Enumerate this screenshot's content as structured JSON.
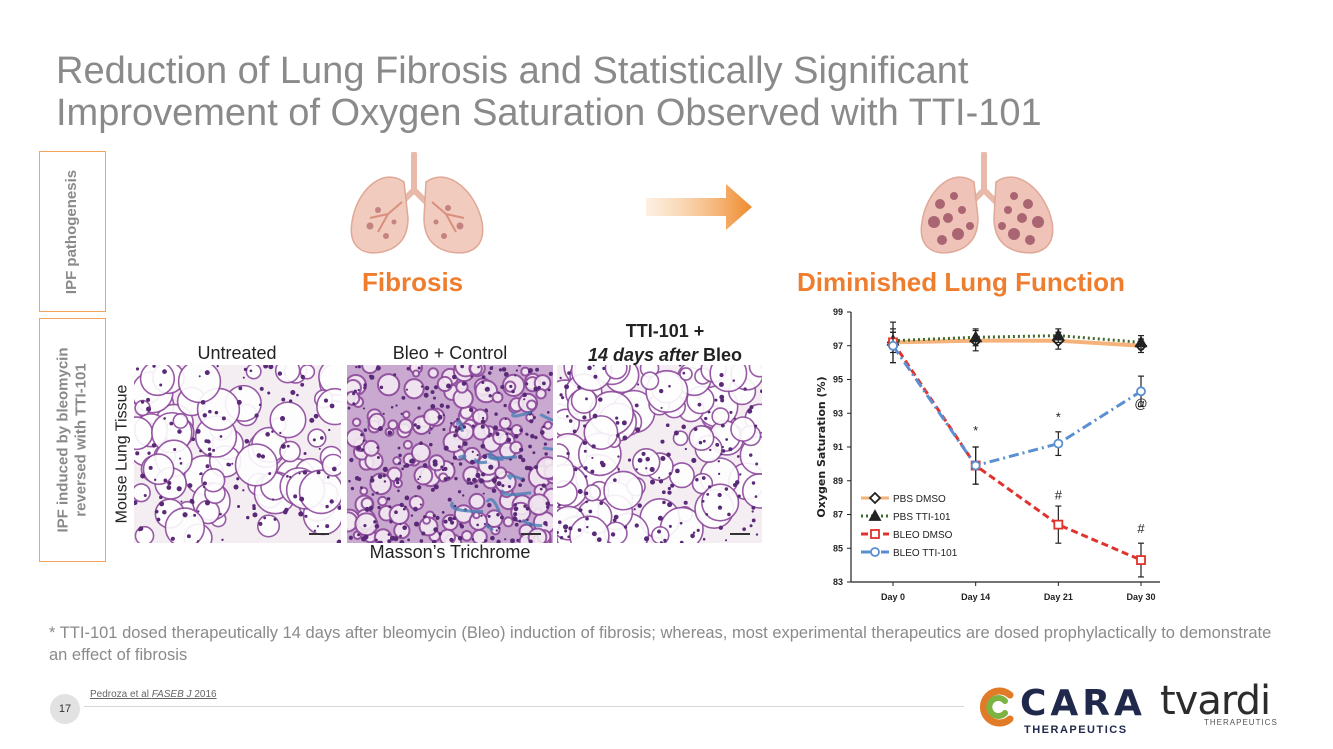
{
  "title": {
    "line1": "Reduction of Lung Fibrosis and Statistically Significant",
    "line2": "Improvement of Oxygen Saturation Observed with TTI-101"
  },
  "side_labels": {
    "top": "IPF pathogenesis",
    "bottom_line1": "IPF induced by bleomycin",
    "bottom_line2": "reversed with TTI-101"
  },
  "sections": {
    "left_heading": "Fibrosis",
    "right_heading": "Diminished Lung Function"
  },
  "histology": {
    "columns": [
      {
        "label": "Untreated"
      },
      {
        "label": "Bleo + Control"
      },
      {
        "label_line1": "TTI-101 +",
        "label_italic": "14 days after",
        "label_tail": " Bleo"
      }
    ],
    "row_label": "Mouse Lung Tissue",
    "stain_label": "Masson’s Trichrome"
  },
  "chart_data": {
    "type": "line",
    "ylabel": "Oxygen Saturation (%)",
    "xlabel": "",
    "categories": [
      "Day 0",
      "Day 14",
      "Day 21",
      "Day 30"
    ],
    "ylim": [
      83,
      99
    ],
    "yticks": [
      83,
      85,
      87,
      89,
      91,
      93,
      95,
      97,
      99
    ],
    "legend_position": "bottom-left",
    "series": [
      {
        "name": "PBS DMSO",
        "values": [
          97.2,
          97.3,
          97.3,
          97.0
        ],
        "errors": [
          0.6,
          0.6,
          0.5,
          0.4
        ],
        "color": "#f5b27a",
        "marker": "diamond",
        "dash": "solid"
      },
      {
        "name": "PBS TTI-101",
        "values": [
          97.3,
          97.5,
          97.6,
          97.2
        ],
        "errors": [
          0.5,
          0.5,
          0.4,
          0.4
        ],
        "color": "#3f6b2a",
        "marker": "triangle",
        "dash": "dotted"
      },
      {
        "name": "BLEO DMSO",
        "values": [
          97.2,
          89.9,
          86.4,
          84.3
        ],
        "errors": [
          1.2,
          1.1,
          1.1,
          1.0
        ],
        "color": "#e0332d",
        "marker": "square",
        "dash": "dashed"
      },
      {
        "name": "BLEO TTI-101",
        "values": [
          97.0,
          89.9,
          91.2,
          94.3
        ],
        "errors": [
          1.0,
          1.1,
          0.7,
          0.9
        ],
        "color": "#5b8fd1",
        "marker": "circle",
        "dash": "dashdot"
      }
    ],
    "annotations": [
      {
        "text": "*",
        "x": "Day 14",
        "y": 91.7
      },
      {
        "text": "*",
        "x": "Day 21",
        "y": 92.5
      },
      {
        "text": "@",
        "x": "Day 30",
        "y": 93.3
      },
      {
        "text": "#",
        "x": "Day 21",
        "y": 87.9
      },
      {
        "text": "#",
        "x": "Day 30",
        "y": 85.9
      }
    ]
  },
  "footnote": {
    "star": "*",
    "text": "TTI-101 dosed therapeutically 14 days after bleomycin (Bleo) induction of fibrosis; whereas, most experimental therapeutics are dosed prophylactically to demonstrate an effect of fibrosis"
  },
  "footer": {
    "page_number": "17",
    "citation_author": "Pedroza et al ",
    "citation_journal": "FASEB J",
    "citation_year": " 2016",
    "logo1_word": "CARA",
    "logo1_sub": "THERAPEUTICS",
    "logo2_word": "tvardi",
    "logo2_sub": "THERAPEUTICS"
  },
  "colors": {
    "accent_orange": "#ee7d2e",
    "title_gray": "#8a8a8a",
    "brand_navy": "#20294b"
  }
}
